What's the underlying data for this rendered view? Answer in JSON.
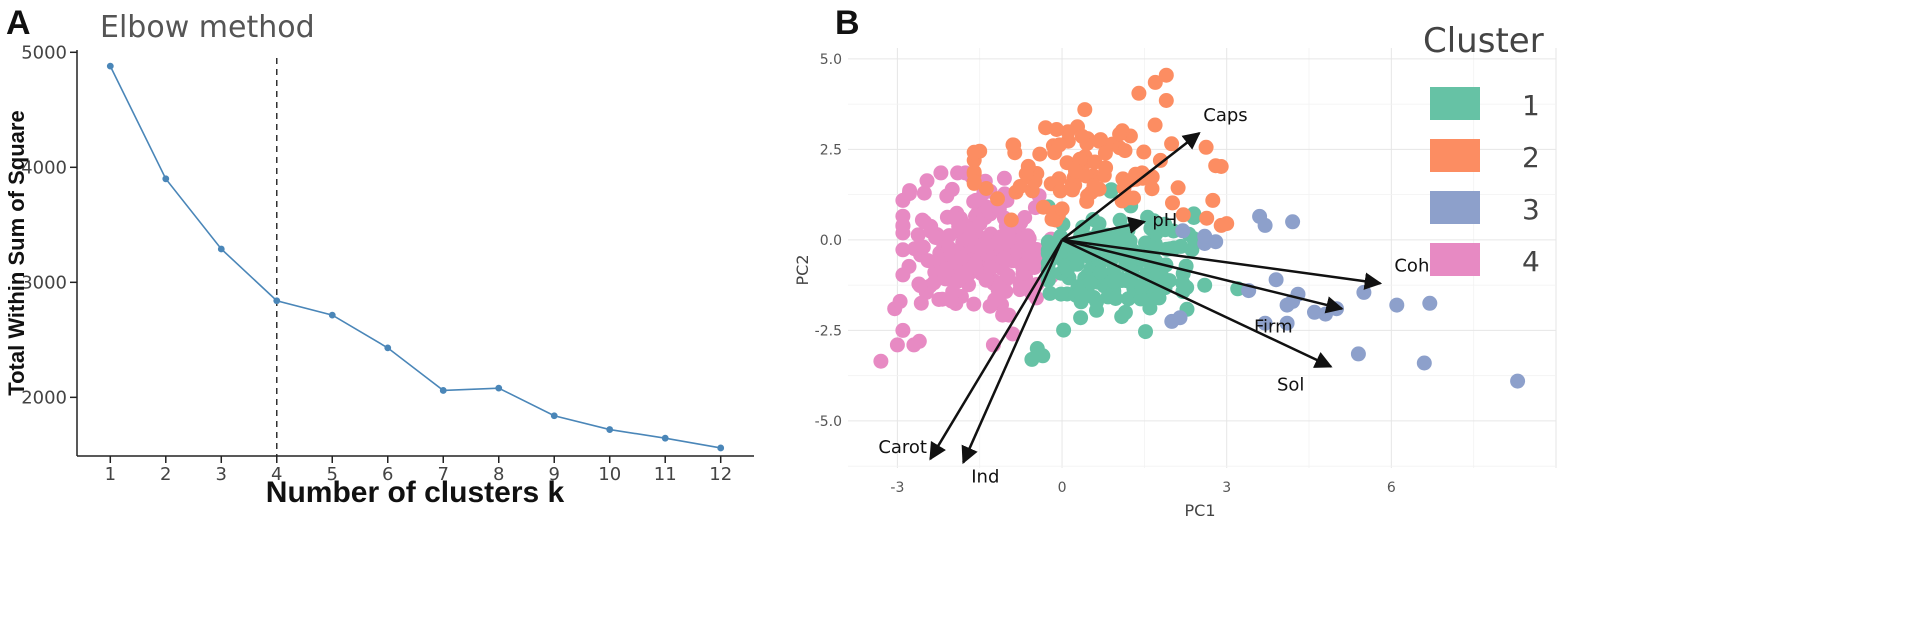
{
  "chart_data": [
    {
      "panel": "A",
      "type": "line",
      "title": "Elbow method",
      "xlabel": "Number of clusters k",
      "ylabel": "Total Within Sum of Square",
      "x": [
        1,
        2,
        3,
        4,
        5,
        6,
        7,
        8,
        9,
        10,
        11,
        12
      ],
      "values": [
        4880,
        3900,
        3290,
        2840,
        2715,
        2430,
        2060,
        2080,
        1840,
        1720,
        1645,
        1560
      ],
      "xlim": [
        0.4,
        12.6
      ],
      "ylim": [
        1490,
        5020
      ],
      "yticks": [
        2000,
        3000,
        4000,
        5000
      ],
      "ytick_labels": [
        "2000",
        "3000",
        "4000",
        "5000"
      ],
      "xtick_labels": [
        "1",
        "2",
        "3",
        "4",
        "5",
        "6",
        "7",
        "8",
        "9",
        "10",
        "11",
        "12"
      ],
      "vline_at": 4,
      "line_color": "#4a86b8"
    },
    {
      "panel": "B",
      "type": "scatter",
      "xlabel": "PC1",
      "ylabel": "PC2",
      "xlim": [
        -3.9,
        9.0
      ],
      "ylim": [
        -6.3,
        5.3
      ],
      "xticks": [
        -3,
        0,
        3,
        6
      ],
      "xtick_labels": [
        "-3",
        "0",
        "3",
        "6"
      ],
      "yticks": [
        5.0,
        2.5,
        0.0,
        -2.5,
        -5.0
      ],
      "ytick_labels": [
        "5.0",
        "2.5",
        "0.0",
        "-2.5",
        "-5.0"
      ],
      "legend": {
        "title": "Cluster",
        "position": "right",
        "entries": [
          {
            "label": "1",
            "color": "#66c2a5"
          },
          {
            "label": "2",
            "color": "#fc8d62"
          },
          {
            "label": "3",
            "color": "#8da0cb"
          },
          {
            "label": "4",
            "color": "#e78ac3"
          }
        ]
      },
      "vectors": [
        {
          "label": "Caps",
          "end": [
            2.5,
            2.95
          ]
        },
        {
          "label": "pH",
          "end": [
            1.5,
            0.5
          ]
        },
        {
          "label": "Coh",
          "end": [
            5.8,
            -1.2
          ]
        },
        {
          "label": "Firm",
          "end": [
            5.1,
            -1.9
          ]
        },
        {
          "label": "Sol",
          "end": [
            4.9,
            -3.5
          ]
        },
        {
          "label": "Carot",
          "end": [
            -2.4,
            -6.05
          ]
        },
        {
          "label": "Ind",
          "end": [
            -1.8,
            -6.15
          ]
        }
      ],
      "cluster_points": {
        "3": [
          [
            3.6,
            0.65
          ],
          [
            3.7,
            0.4
          ],
          [
            4.2,
            0.5
          ],
          [
            2.6,
            -0.1
          ],
          [
            2.6,
            0.1
          ],
          [
            2.8,
            -0.05
          ],
          [
            2.2,
            0.25
          ],
          [
            3.9,
            -1.1
          ],
          [
            4.2,
            -1.7
          ],
          [
            4.1,
            -1.8
          ],
          [
            4.3,
            -1.5
          ],
          [
            4.6,
            -2.0
          ],
          [
            4.8,
            -2.05
          ],
          [
            5.0,
            -1.9
          ],
          [
            5.5,
            -1.45
          ],
          [
            6.1,
            -1.8
          ],
          [
            6.7,
            -1.75
          ],
          [
            3.7,
            -2.3
          ],
          [
            4.1,
            -2.3
          ],
          [
            5.4,
            -3.15
          ],
          [
            6.6,
            -3.4
          ],
          [
            8.3,
            -3.9
          ],
          [
            2.15,
            -2.15
          ],
          [
            2.0,
            -2.25
          ],
          [
            3.4,
            -1.4
          ]
        ]
      }
    }
  ]
}
